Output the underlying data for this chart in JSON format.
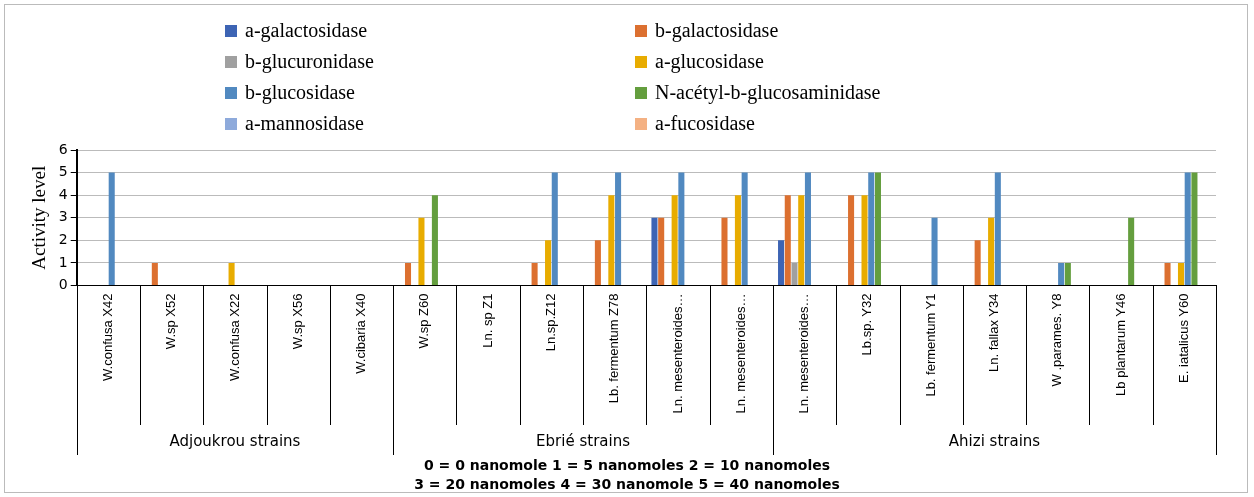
{
  "chart_data": {
    "type": "bar",
    "ylabel": "Activity level",
    "categories": [
      "W.confusa X42",
      "W.sp X52",
      "W.confusa X22",
      "W.sp X56",
      "W.cibaria X40",
      "W.sp Z60",
      "Ln. sp Z1",
      "Ln.sp.Z12",
      "Lb. fermentum Z78",
      "Ln. mesenteroides…",
      "Ln. mesenteroides…",
      "Ln. mesenteroides…",
      "Lb.sp. Y32",
      "Lb. fermentum Y1",
      "Ln. fallax Y34",
      "W .parames. Y8",
      "Lb plantarum Y46",
      "E. iatalicus Y60"
    ],
    "series": [
      {
        "name": "a-galactosidase",
        "color": "#3d64b4",
        "values": [
          0,
          0,
          0,
          0,
          0,
          0,
          0,
          0,
          0,
          3,
          0,
          2,
          0,
          0,
          0,
          0,
          0,
          0
        ]
      },
      {
        "name": "b-galactosidase",
        "color": "#dc7030",
        "values": [
          0,
          1,
          0,
          0,
          0,
          1,
          0,
          1,
          2,
          3,
          3,
          4,
          4,
          0,
          2,
          0,
          0,
          1
        ]
      },
      {
        "name": "b-glucuronidase",
        "color": "#a0a0a0",
        "values": [
          0,
          0,
          0,
          0,
          0,
          0,
          0,
          0,
          0,
          0,
          0,
          1,
          0,
          0,
          0,
          0,
          0,
          0
        ]
      },
      {
        "name": "a-glucosidase",
        "color": "#e8ac00",
        "values": [
          0,
          0,
          1,
          0,
          0,
          3,
          0,
          2,
          4,
          4,
          4,
          4,
          4,
          0,
          3,
          0,
          0,
          1
        ]
      },
      {
        "name": "b-glucosidase",
        "color": "#5189c0",
        "values": [
          5,
          0,
          0,
          0,
          0,
          0,
          0,
          5,
          5,
          5,
          5,
          5,
          5,
          3,
          5,
          1,
          0,
          5
        ]
      },
      {
        "name": "N-acétyl-b-glucosaminidase",
        "color": "#649e3e",
        "values": [
          0,
          0,
          0,
          0,
          0,
          4,
          0,
          0,
          0,
          0,
          0,
          0,
          5,
          0,
          0,
          1,
          3,
          5
        ]
      },
      {
        "name": "a-mannosidase",
        "color": "#8eaadb",
        "values": [
          0,
          0,
          0,
          0,
          0,
          0,
          0,
          0,
          0,
          0,
          0,
          0,
          0,
          0,
          0,
          0,
          0,
          0
        ]
      },
      {
        "name": "a-fucosidase",
        "color": "#f4b183",
        "values": [
          0,
          0,
          0,
          0,
          0,
          0,
          0,
          0,
          0,
          0,
          0,
          0,
          0,
          0,
          0,
          0,
          0,
          0
        ]
      }
    ],
    "ylim": [
      0,
      6
    ],
    "yticks": [
      0,
      1,
      2,
      3,
      4,
      5,
      6
    ],
    "grid": "y",
    "legend": "top",
    "annotations": [
      "Adjoukrou strains",
      "Ebrié strains",
      "Ahizi strains",
      "0 = 0 nanomole  1 = 5 nanomoles 2 = 10 nanomoles",
      "3 = 20 nanomoles  4 = 30 nanomole  5 = 40 nanomoles"
    ]
  }
}
